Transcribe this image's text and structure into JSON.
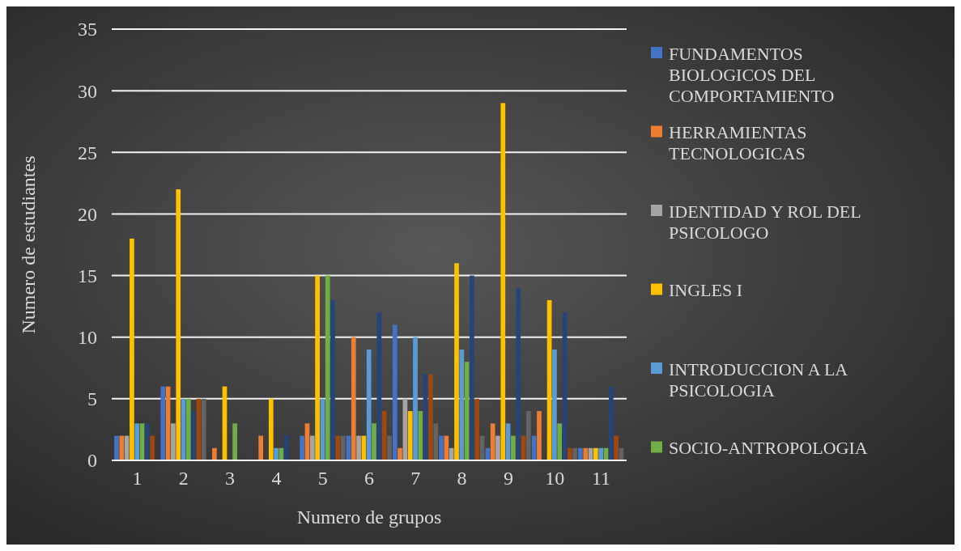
{
  "chart_data": {
    "type": "bar",
    "xlabel": "Numero de grupos",
    "ylabel": "Numero de estudiantes",
    "categories": [
      "1",
      "2",
      "3",
      "4",
      "5",
      "6",
      "7",
      "8",
      "9",
      "10",
      "11"
    ],
    "ylim": [
      0,
      35
    ],
    "yticks": [
      0,
      5,
      10,
      15,
      20,
      25,
      30,
      35
    ],
    "grid": "y",
    "legend": "right",
    "series": [
      {
        "name": "FUNDAMENTOS BIOLOGICOS DEL COMPORTAMIENTO",
        "color": "#4472c4",
        "values": [
          2,
          6,
          0,
          0,
          2,
          2,
          11,
          2,
          1,
          2,
          1
        ]
      },
      {
        "name": "HERRAMIENTAS TECNOLOGICAS",
        "color": "#ed7d31",
        "values": [
          2,
          6,
          1,
          2,
          3,
          10,
          1,
          2,
          3,
          4,
          1
        ]
      },
      {
        "name": "IDENTIDAD Y ROL DEL PSICOLOGO",
        "color": "#a5a5a5",
        "values": [
          2,
          3,
          0,
          0,
          2,
          2,
          5,
          1,
          2,
          0,
          1
        ]
      },
      {
        "name": "INGLES I",
        "color": "#ffc000",
        "values": [
          18,
          22,
          6,
          5,
          15,
          2,
          4,
          16,
          29,
          13,
          1
        ]
      },
      {
        "name": "INTRODUCCION A LA PSICOLOGIA",
        "color": "#5b9bd5",
        "values": [
          3,
          5,
          0,
          1,
          5,
          9,
          10,
          9,
          3,
          9,
          1
        ]
      },
      {
        "name": "SOCIO-ANTROPOLOGIA",
        "color": "#70ad47",
        "values": [
          3,
          5,
          3,
          1,
          15,
          3,
          4,
          8,
          2,
          3,
          1
        ]
      },
      {
        "color": "#264478",
        "values": [
          3,
          4,
          0,
          2,
          13,
          12,
          7,
          15,
          14,
          12,
          6
        ]
      },
      {
        "color": "#9e480e",
        "values": [
          2,
          5,
          0,
          0,
          2,
          4,
          7,
          5,
          2,
          1,
          2
        ]
      },
      {
        "color": "#636363",
        "values": [
          0,
          5,
          0,
          0,
          2,
          2,
          3,
          2,
          4,
          1,
          1
        ]
      }
    ]
  }
}
